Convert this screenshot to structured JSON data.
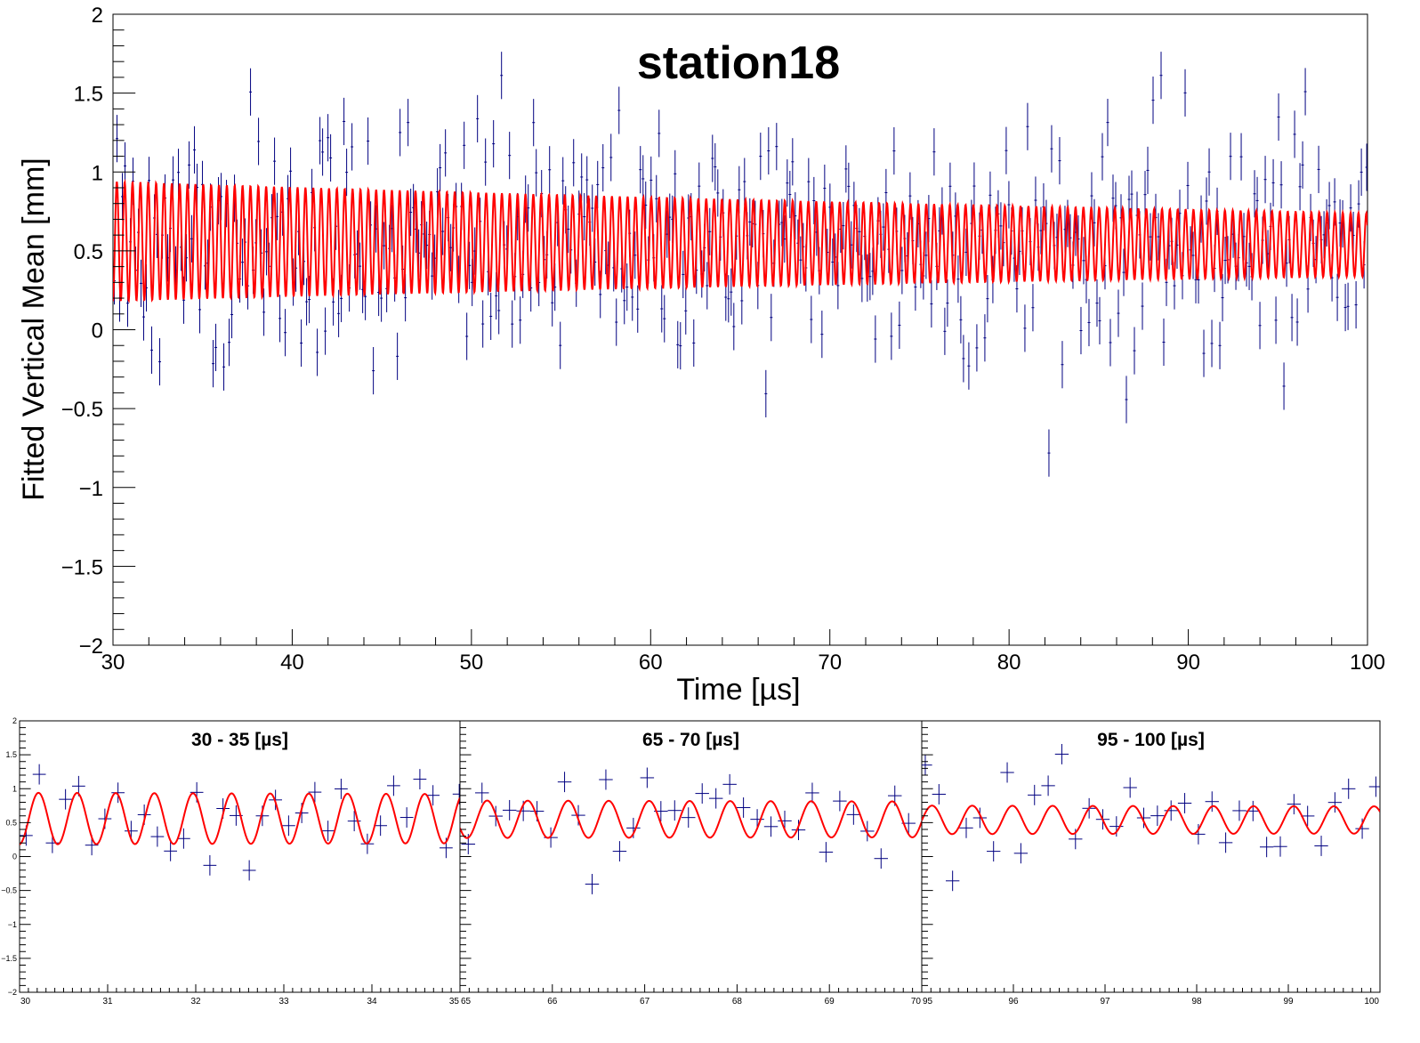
{
  "colors": {
    "data": "#000080",
    "fit": "#ff0000",
    "axis": "#000000",
    "background": "#ffffff"
  },
  "chart_data": [
    {
      "type": "line",
      "title": "station18",
      "xlabel": "Time [µs]",
      "ylabel": "Fitted Vertical Mean [mm]",
      "xlim": [
        30,
        100
      ],
      "ylim": [
        -2,
        2
      ],
      "x_ticks": [
        30,
        40,
        50,
        60,
        70,
        80,
        90,
        100
      ],
      "x_tick_labels": [
        "30",
        "40",
        "50",
        "60",
        "70",
        "80",
        "90",
        "100"
      ],
      "y_ticks": [
        -2,
        -1.5,
        -1,
        -0.5,
        0,
        0.5,
        1,
        1.5,
        2
      ],
      "y_tick_labels": [
        "−2",
        "−1.5",
        "−1",
        "−0.5",
        "0",
        "0.5",
        "1",
        "1.5",
        "2"
      ],
      "grid": false,
      "series": [
        {
          "kind": "measured-points-with-error-bars",
          "color": "#000080",
          "bin_width_us": 0.149,
          "mean_start_mm": 0.56,
          "mean_end_mm": 0.53,
          "scatter_start_mm": 0.32,
          "scatter_end_mm": 0.38,
          "error_bar_mm": 0.15
        },
        {
          "kind": "fit-curve",
          "color": "#ff0000",
          "function": "offset + amplitude*exp(-(t-30)/tau)*cos(2*pi*t/period + phase)",
          "offset_mm": 0.56,
          "offset_slope_mm_per_us": -0.0003,
          "amplitude_mm": 0.38,
          "tau_us": 110,
          "period_us": 0.4385,
          "phase_rad": 0.6
        }
      ]
    },
    {
      "type": "line",
      "title": "30 - 35 [µs]",
      "xlim": [
        30,
        35
      ],
      "ylim": [
        -2,
        2
      ],
      "x_ticks": [
        30,
        31,
        32,
        33,
        34,
        35
      ],
      "x_tick_labels": [
        "30",
        "31",
        "32",
        "33",
        "34",
        "35"
      ],
      "y_ticks": [
        -2,
        -1.5,
        -1,
        -0.5,
        0,
        0.5,
        1,
        1.5,
        2
      ],
      "y_tick_labels": [
        "−2",
        "−1.5",
        "−1",
        "−0.5",
        "0",
        "0.5",
        "1",
        "1.5",
        "2"
      ]
    },
    {
      "type": "line",
      "title": "65 - 70 [µs]",
      "xlim": [
        65,
        70
      ],
      "ylim": [
        -2,
        2
      ],
      "x_ticks": [
        65,
        66,
        67,
        68,
        69,
        70
      ],
      "x_tick_labels": [
        "65",
        "66",
        "67",
        "68",
        "69",
        "70"
      ]
    },
    {
      "type": "line",
      "title": "95 - 100 [µs]",
      "xlim": [
        95,
        100
      ],
      "ylim": [
        -2,
        2
      ],
      "x_ticks": [
        95,
        96,
        97,
        98,
        99,
        100
      ],
      "x_tick_labels": [
        "95",
        "96",
        "97",
        "98",
        "99",
        "100"
      ]
    }
  ]
}
